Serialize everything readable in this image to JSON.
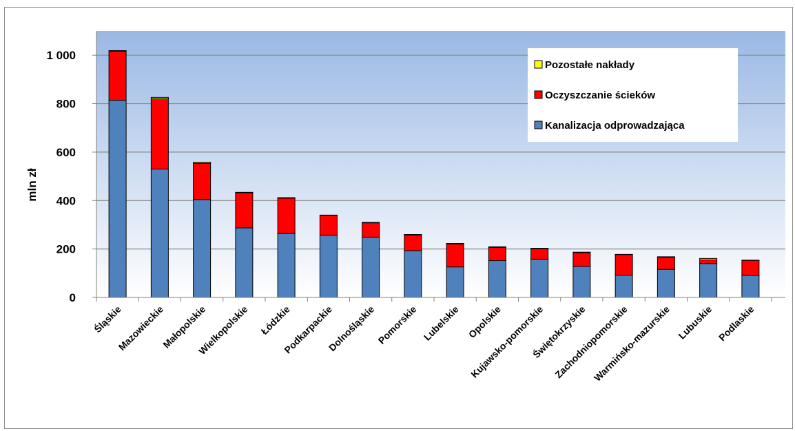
{
  "chart_data": {
    "type": "bar",
    "stacked": true,
    "title": "",
    "xlabel": "",
    "ylabel": "mln zł",
    "ylim": [
      0,
      1100
    ],
    "yticks": [
      0,
      200,
      400,
      600,
      800,
      1000
    ],
    "ytick_labels": [
      "0",
      "200",
      "400",
      "600",
      "800",
      "1 000"
    ],
    "grid": true,
    "legend_position": "top-right",
    "categories": [
      "Śląskie",
      "Mazowieckie",
      "Małopolskie",
      "Wielkopolskie",
      "Łódzkie",
      "Podkarpackie",
      "Dolnośląskie",
      "Pomorskie",
      "Lubelskie",
      "Opolskie",
      "Kujawsko-pomorskie",
      "Świętokrzyskie",
      "Zachodniopomorskie",
      "Warmińsko-mazurskie",
      "Lubuskie",
      "Podlaskie"
    ],
    "series": [
      {
        "name": "Kanalizacja odprowadzająca",
        "color": "#4f81bd",
        "values": [
          814,
          530,
          404,
          287,
          264,
          257,
          249,
          193,
          126,
          152,
          158,
          128,
          92,
          116,
          140,
          91
        ]
      },
      {
        "name": "Oczyszczanie ścieków",
        "color": "#ff0000",
        "values": [
          203,
          290,
          150,
          145,
          146,
          82,
          59,
          65,
          95,
          55,
          43,
          57,
          85,
          50,
          15,
          62
        ]
      },
      {
        "name": "Pozostałe nakłady",
        "color": "#ffff00",
        "values": [
          2,
          6,
          4,
          2,
          2,
          1,
          2,
          2,
          2,
          2,
          2,
          2,
          1,
          2,
          6,
          1
        ]
      }
    ],
    "legend_order": [
      "Pozostałe nakłady",
      "Oczyszczanie ścieków",
      "Kanalizacja odprowadzająca"
    ],
    "plot_background": "#dbe5f1",
    "plot_gradient_top": "#9ab8e4"
  }
}
